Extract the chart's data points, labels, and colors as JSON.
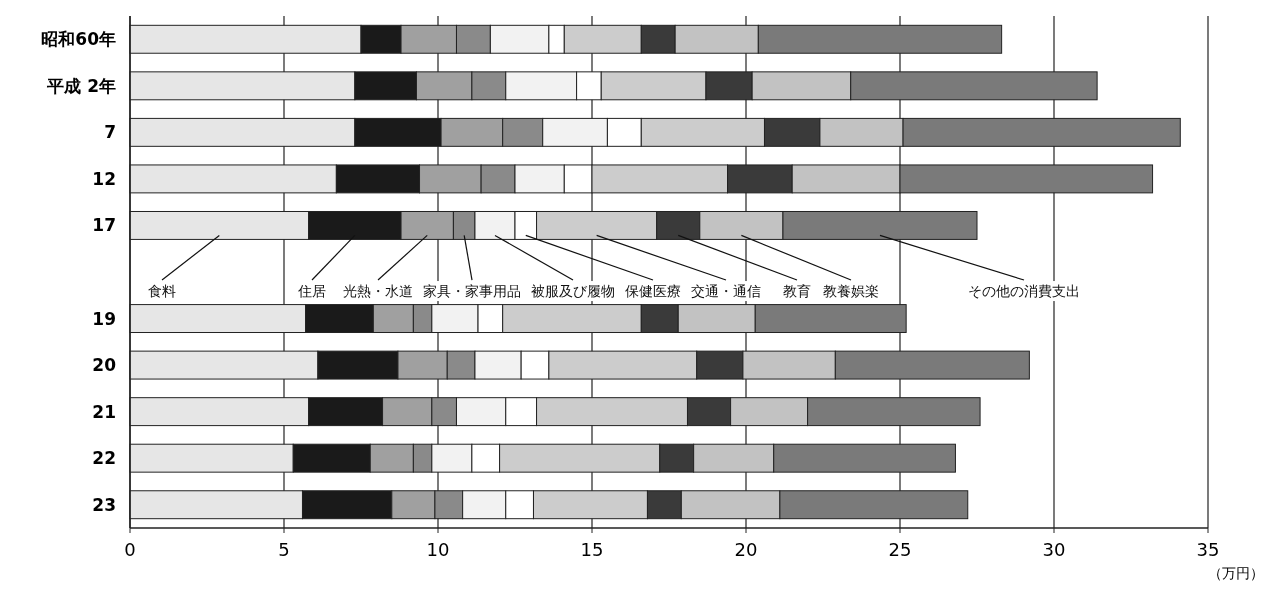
{
  "chart_data": {
    "type": "bar",
    "orientation": "horizontal",
    "stacked": true,
    "xlabel": "（万円）",
    "categories": [
      "昭和60年",
      "平成 2年",
      "7",
      "12",
      "17",
      null,
      "19",
      "20",
      "21",
      "22",
      "23"
    ],
    "series": [
      {
        "name": "食料",
        "color": "#e6e6e6",
        "values": [
          7.5,
          7.3,
          7.3,
          6.7,
          5.8,
          null,
          5.7,
          6.1,
          5.8,
          5.3,
          5.6
        ]
      },
      {
        "name": "住居",
        "color": "#1a1a1a",
        "values": [
          1.3,
          2.0,
          2.8,
          2.7,
          3.0,
          null,
          2.2,
          2.6,
          2.4,
          2.5,
          2.9
        ]
      },
      {
        "name": "光熱・水道",
        "color": "#a0a0a0",
        "values": [
          1.8,
          1.8,
          2.0,
          2.0,
          1.7,
          null,
          1.3,
          1.6,
          1.6,
          1.4,
          1.4
        ]
      },
      {
        "name": "家具・家事用品",
        "color": "#8a8a8a",
        "values": [
          1.1,
          1.1,
          1.3,
          1.1,
          0.7,
          null,
          0.6,
          0.9,
          0.8,
          0.6,
          0.9
        ]
      },
      {
        "name": "被服及び履物",
        "color": "#f2f2f2",
        "values": [
          1.9,
          2.3,
          2.1,
          1.6,
          1.3,
          null,
          1.5,
          1.5,
          1.6,
          1.3,
          1.4
        ]
      },
      {
        "name": "保健医療",
        "color": "#ffffff",
        "values": [
          0.5,
          0.8,
          1.1,
          0.9,
          0.7,
          null,
          0.8,
          0.9,
          1.0,
          0.9,
          0.9
        ]
      },
      {
        "name": "交通・通信",
        "color": "#cccccc",
        "values": [
          2.5,
          3.4,
          4.0,
          4.4,
          3.9,
          null,
          4.5,
          4.8,
          4.9,
          5.2,
          3.7
        ]
      },
      {
        "name": "教育",
        "color": "#3a3a3a",
        "values": [
          1.1,
          1.5,
          1.8,
          2.1,
          1.4,
          null,
          1.2,
          1.5,
          1.4,
          1.1,
          1.1
        ]
      },
      {
        "name": "教養娯楽",
        "color": "#c2c2c2",
        "values": [
          2.7,
          3.2,
          2.7,
          3.5,
          2.7,
          null,
          2.5,
          3.0,
          2.5,
          2.6,
          3.2
        ]
      },
      {
        "name": "その他の消費支出",
        "color": "#7a7a7a",
        "values": [
          7.9,
          8.0,
          9.0,
          8.2,
          6.3,
          null,
          4.9,
          6.3,
          5.6,
          5.9,
          6.1
        ]
      }
    ],
    "xlim": [
      0,
      35
    ],
    "xticks": [
      0,
      5,
      10,
      15,
      20,
      25,
      30,
      35
    ],
    "grid": "x"
  }
}
